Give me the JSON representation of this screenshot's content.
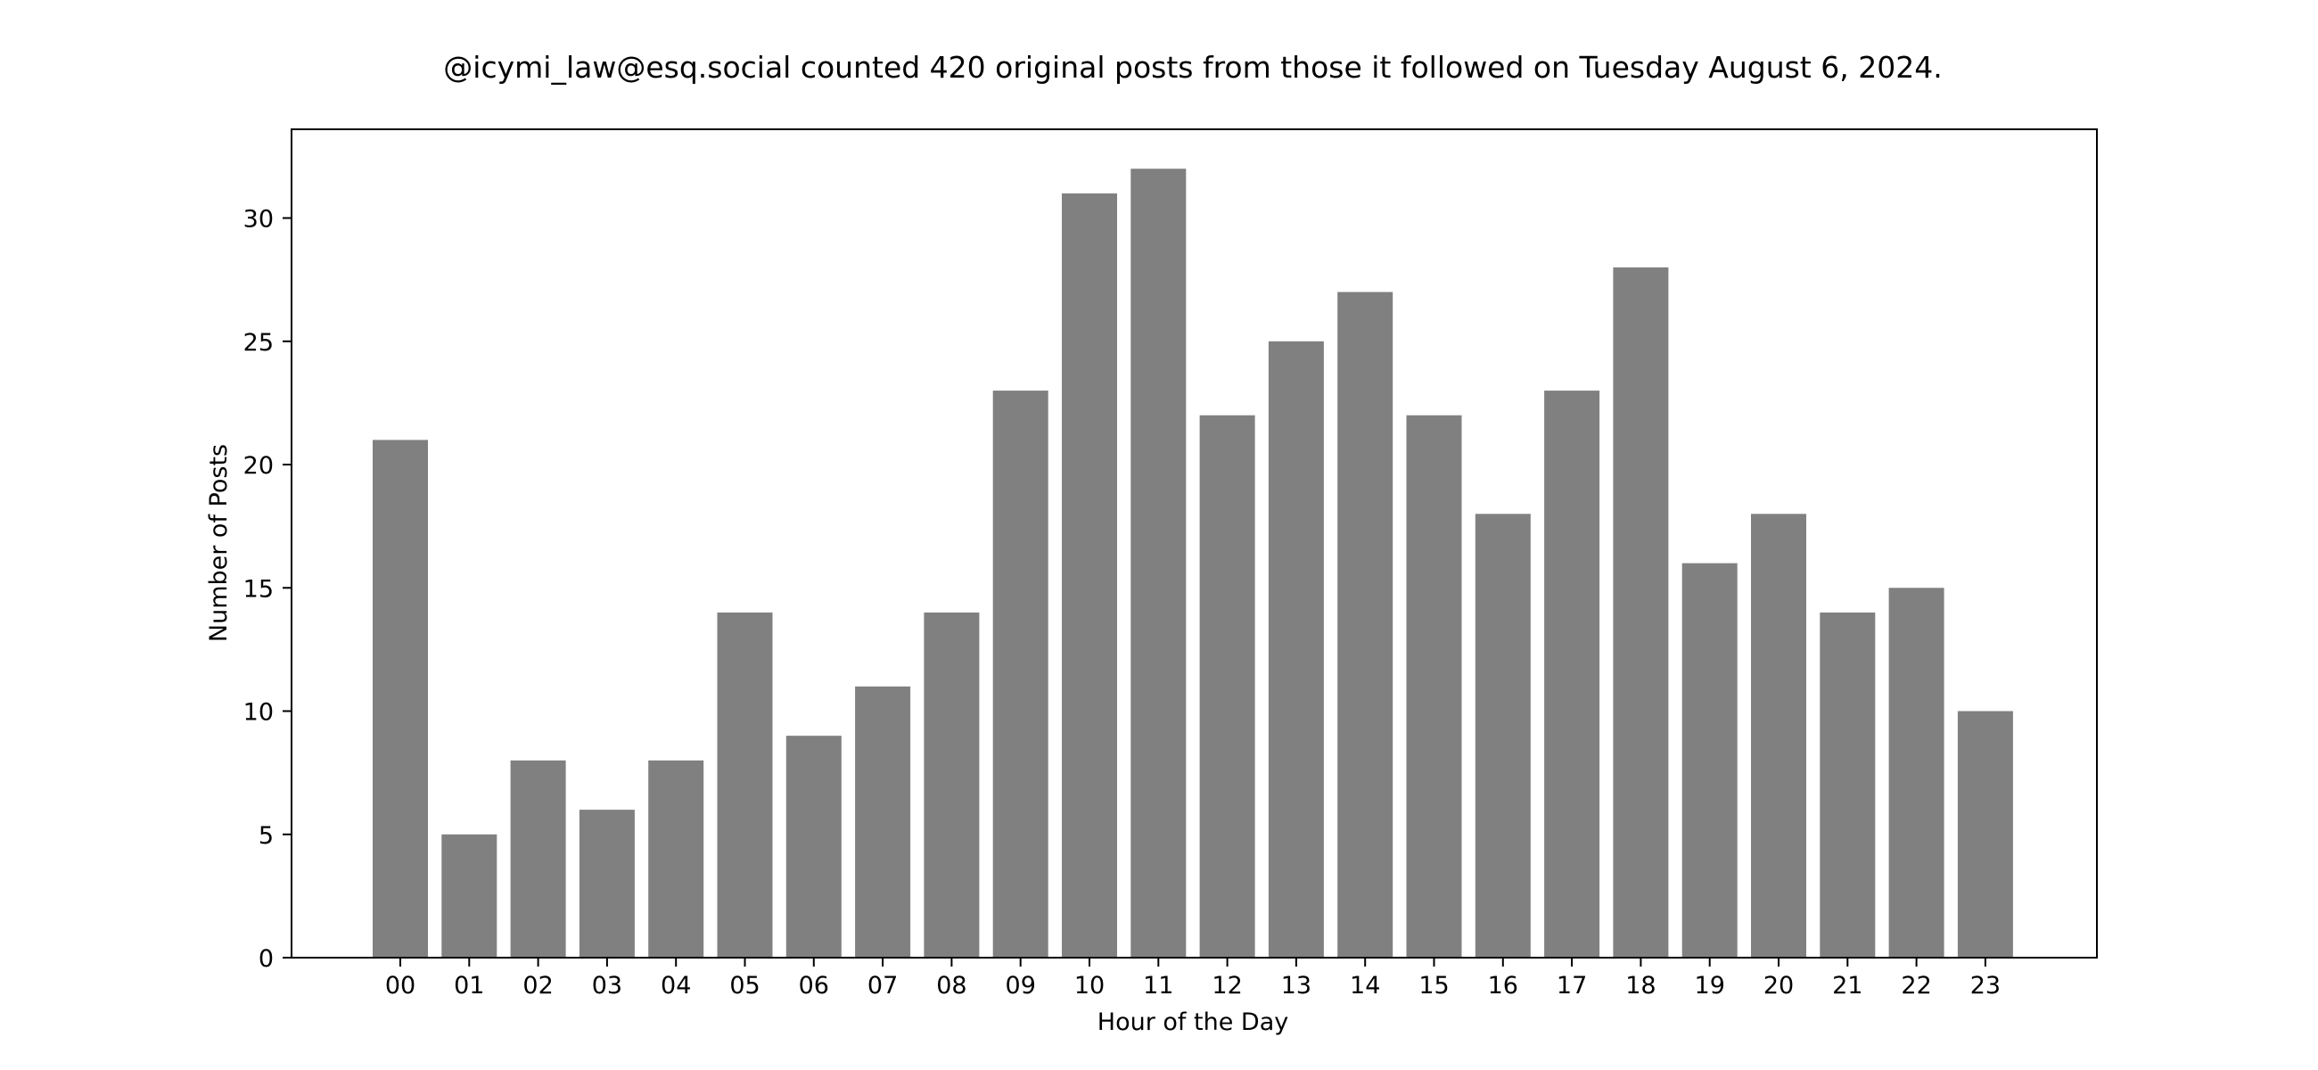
{
  "chart_data": {
    "type": "bar",
    "title": "@icymi_law@esq.social counted 420 original posts from those it followed on Tuesday August 6, 2024.",
    "xlabel": "Hour of the Day",
    "ylabel": "Number of Posts",
    "categories": [
      "00",
      "01",
      "02",
      "03",
      "04",
      "05",
      "06",
      "07",
      "08",
      "09",
      "10",
      "11",
      "12",
      "13",
      "14",
      "15",
      "16",
      "17",
      "18",
      "19",
      "20",
      "21",
      "22",
      "23"
    ],
    "values": [
      21,
      5,
      8,
      6,
      8,
      14,
      9,
      11,
      14,
      23,
      31,
      32,
      22,
      25,
      27,
      22,
      18,
      23,
      28,
      16,
      18,
      14,
      15,
      10
    ],
    "ylim": [
      0,
      33.6
    ],
    "yticks": [
      0,
      5,
      10,
      15,
      20,
      25,
      30
    ],
    "bar_color": "#808080",
    "grid": false,
    "legend": "none"
  }
}
